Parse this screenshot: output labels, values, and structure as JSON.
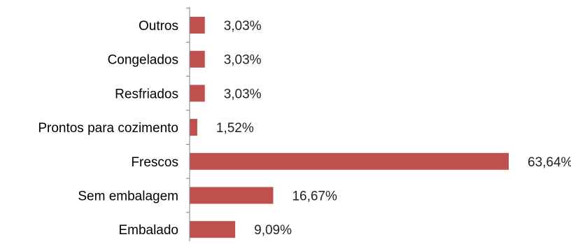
{
  "chart_data": {
    "type": "bar",
    "orientation": "horizontal",
    "title": "",
    "xlabel": "",
    "ylabel": "",
    "categories": [
      "Outros",
      "Congelados",
      "Resfriados",
      "Prontos para cozimento",
      "Frescos",
      "Sem embalagem",
      "Embalado"
    ],
    "values": [
      3.03,
      3.03,
      3.03,
      1.52,
      63.64,
      16.67,
      9.09
    ],
    "value_labels": [
      "3,03%",
      "3,03%",
      "3,03%",
      "1,52%",
      "63,64%",
      "16,67%",
      "9,09%"
    ],
    "xlim": [
      0,
      63.64
    ],
    "grid": false,
    "legend": "none",
    "bar_color": "#c0504d",
    "axis_color": "#7f7f7f"
  }
}
